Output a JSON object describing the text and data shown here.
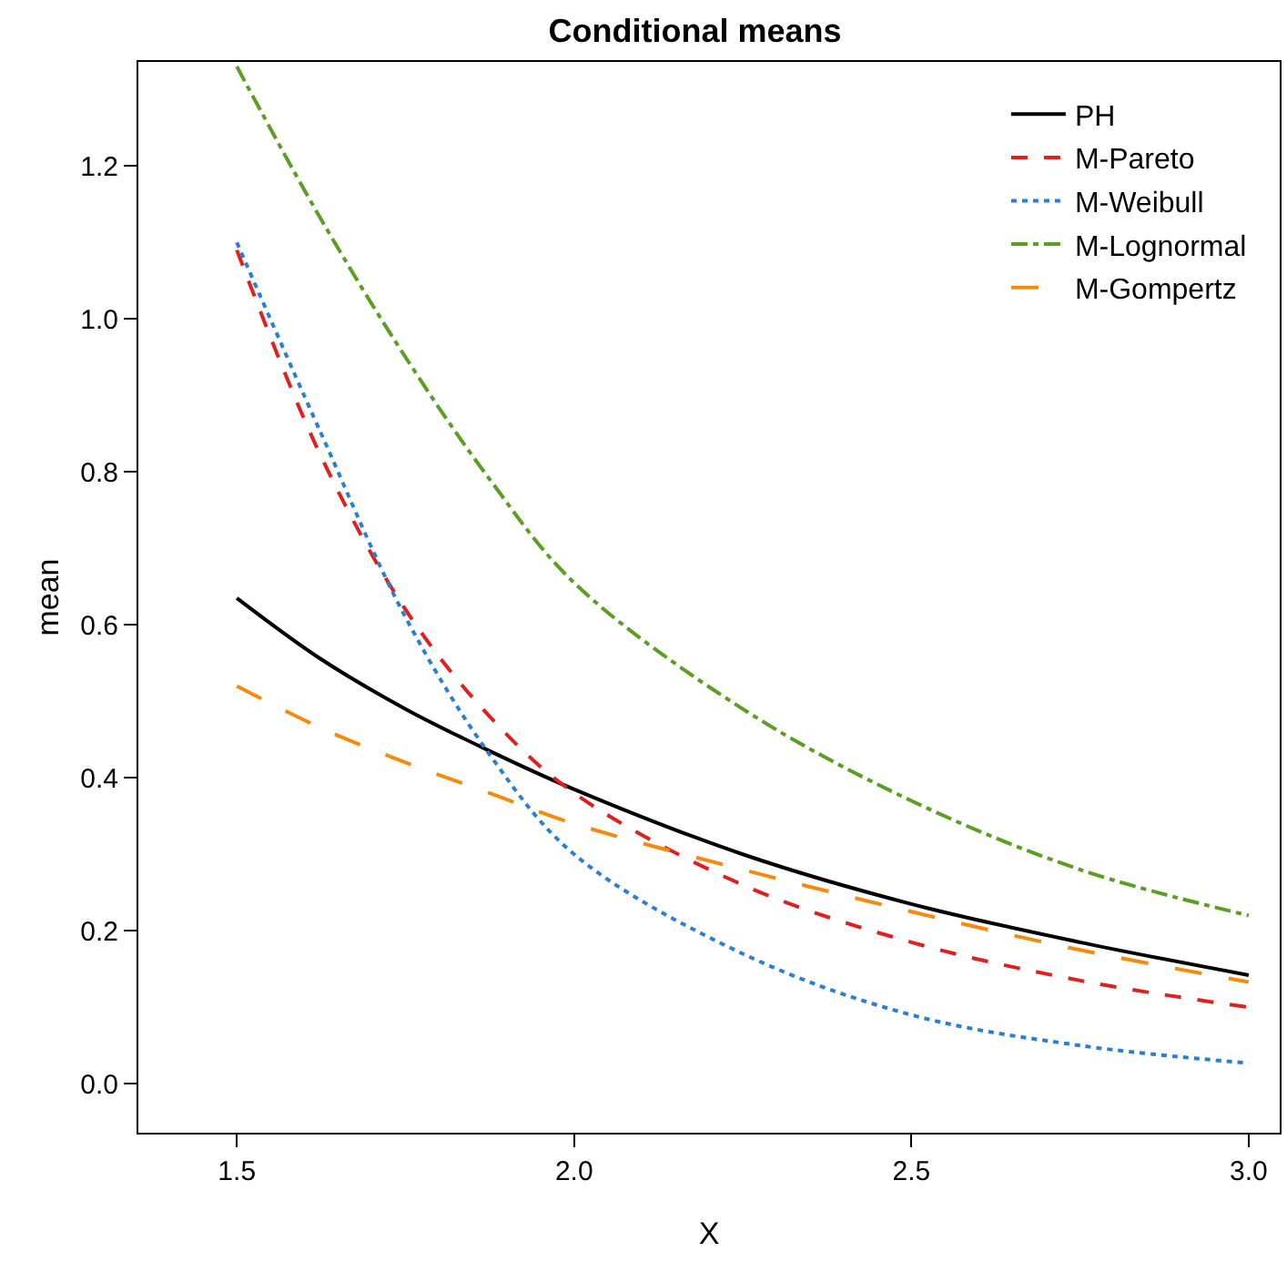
{
  "chart_data": {
    "type": "line",
    "title": "Conditional means",
    "xlabel": "X",
    "ylabel": "mean",
    "x": [
      1.5,
      1.625,
      1.75,
      1.875,
      2.0,
      2.25,
      2.5,
      2.75,
      3.0
    ],
    "series": [
      {
        "name": "PH",
        "color": "#000000",
        "line_style": "solid",
        "values": [
          0.635,
          0.555,
          0.49,
          0.435,
          0.385,
          0.3,
          0.235,
          0.185,
          0.142
        ]
      },
      {
        "name": "M-Pareto",
        "color": "#df2020",
        "line_style": "dashed",
        "values": [
          1.09,
          0.82,
          0.62,
          0.48,
          0.38,
          0.26,
          0.185,
          0.135,
          0.1
        ]
      },
      {
        "name": "M-Weibull",
        "color": "#2a7fd4",
        "line_style": "dotted",
        "values": [
          1.1,
          0.85,
          0.61,
          0.43,
          0.3,
          0.17,
          0.09,
          0.05,
          0.027
        ]
      },
      {
        "name": "M-Lognormal",
        "color": "#5a9e22",
        "line_style": "dashdot",
        "values": [
          1.33,
          1.13,
          0.95,
          0.79,
          0.655,
          0.49,
          0.37,
          0.28,
          0.22
        ]
      },
      {
        "name": "M-Gompertz",
        "color": "#f58a0c",
        "line_style": "longdash",
        "values": [
          0.52,
          0.465,
          0.42,
          0.38,
          0.34,
          0.28,
          0.225,
          0.175,
          0.133
        ]
      }
    ],
    "xlim": [
      1.354,
      3.046
    ],
    "ylim": [
      -0.064,
      1.336
    ],
    "xticks": [
      {
        "value": 1.5,
        "label": "1.5"
      },
      {
        "value": 2.0,
        "label": "2.0"
      },
      {
        "value": 2.5,
        "label": "2.5"
      },
      {
        "value": 3.0,
        "label": "3.0"
      }
    ],
    "yticks": [
      {
        "value": 0,
        "label": "0.0"
      },
      {
        "value": 0.2,
        "label": "0.2"
      },
      {
        "value": 0.4,
        "label": "0.4"
      },
      {
        "value": 0.6,
        "label": "0.6"
      },
      {
        "value": 0.8,
        "label": "0.8"
      },
      {
        "value": 1.0,
        "label": "1.0"
      },
      {
        "value": 1.2,
        "label": "1.2"
      }
    ],
    "grid": false,
    "legend": "top right",
    "marker": "none"
  }
}
